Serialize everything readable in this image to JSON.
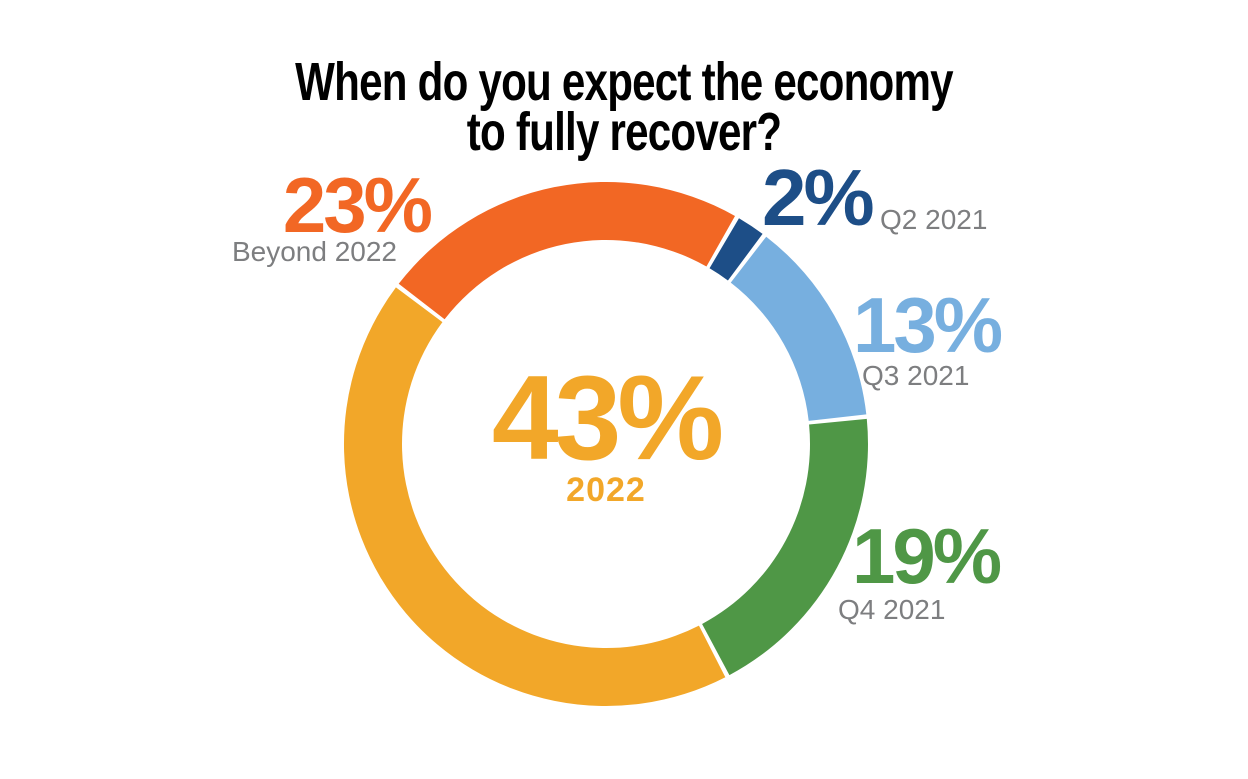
{
  "title": {
    "line1": "When do you expect the economy",
    "line2": "to fully recover?"
  },
  "chart_data": {
    "type": "pie",
    "variant": "donut",
    "title": "When do you expect the economy to fully recover?",
    "start_angle_deg": 30,
    "direction": "clockwise",
    "gap_deg": 1.0,
    "segments": [
      {
        "label": "Q2 2021",
        "value": 2,
        "pct_text": "2%",
        "color": "#1D4E87",
        "label_position": "right-of-pct"
      },
      {
        "label": "Q3 2021",
        "value": 13,
        "pct_text": "13%",
        "color": "#77AFDF",
        "label_position": "below-pct"
      },
      {
        "label": "Q4 2021",
        "value": 19,
        "pct_text": "19%",
        "color": "#4F9746",
        "label_position": "below-pct"
      },
      {
        "label": "2022",
        "value": 43,
        "pct_text": "43%",
        "color": "#F2A729",
        "label_position": "center"
      },
      {
        "label": "Beyond 2022",
        "value": 23,
        "pct_text": "23%",
        "color": "#F26724",
        "label_position": "below-pct"
      }
    ],
    "center_label": {
      "pct_text": "43%",
      "sub_text": "2022",
      "color": "#F2A729"
    },
    "segment_gap_color": "#FFFFFF",
    "label_gray": "#7D7E80",
    "title_color": "#000000",
    "background": "#FFFFFF",
    "legend": "none",
    "total": 100
  }
}
